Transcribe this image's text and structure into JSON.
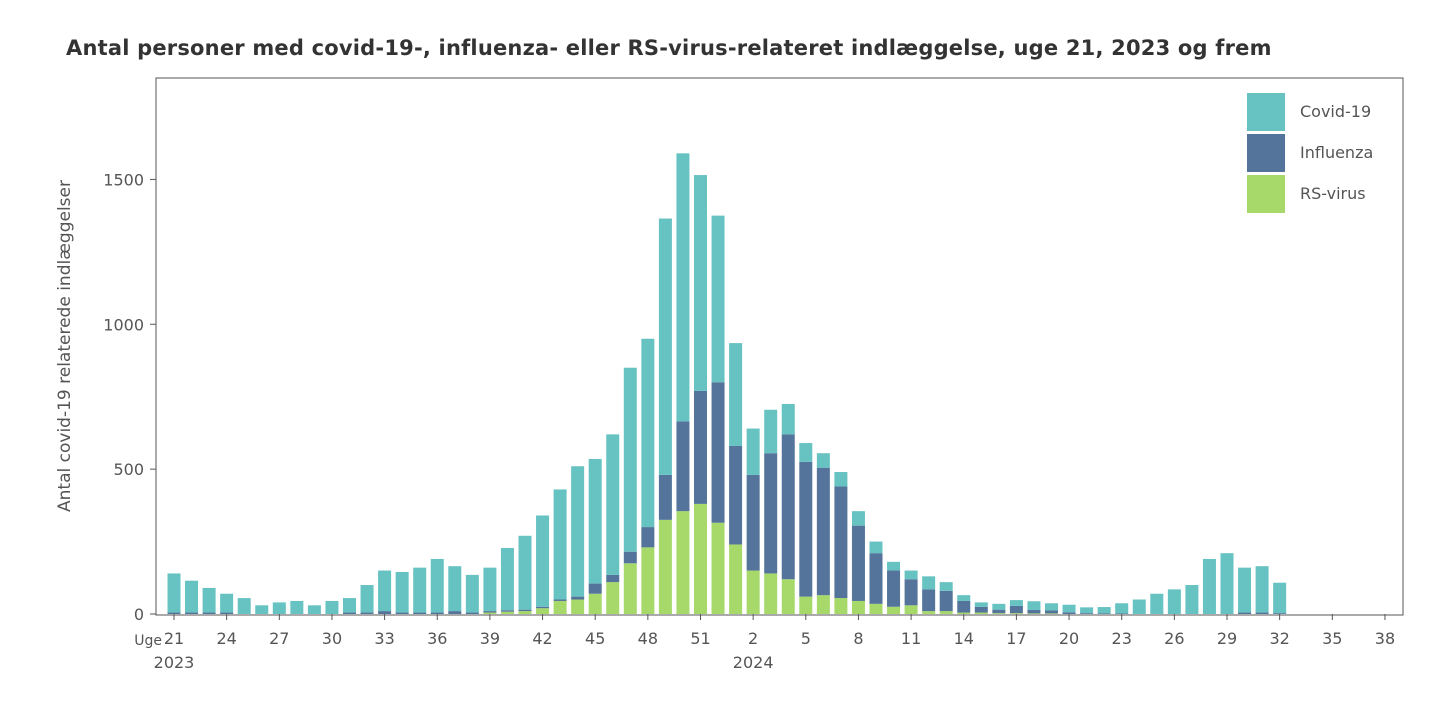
{
  "chart_data": {
    "type": "bar",
    "stacked": true,
    "title": "Antal personer med covid-19-, influenza- eller RS-virus-relateret indlæggelse, uge 21, 2023 og frem",
    "xlabel": "",
    "ylabel": "Antal covid-19 relaterede indlæggelser",
    "ylim": [
      0,
      1850
    ],
    "yticks": [
      0,
      500,
      1000,
      1500
    ],
    "week_axis_prefix": "Uge",
    "year_labels": [
      {
        "label": "2023",
        "week_index": 0
      },
      {
        "label": "2024",
        "week_index": 33
      }
    ],
    "tick_labels": [
      {
        "label": "21",
        "week_index": 0
      },
      {
        "label": "24",
        "week_index": 3
      },
      {
        "label": "27",
        "week_index": 6
      },
      {
        "label": "30",
        "week_index": 9
      },
      {
        "label": "33",
        "week_index": 12
      },
      {
        "label": "36",
        "week_index": 15
      },
      {
        "label": "39",
        "week_index": 18
      },
      {
        "label": "42",
        "week_index": 21
      },
      {
        "label": "45",
        "week_index": 24
      },
      {
        "label": "48",
        "week_index": 27
      },
      {
        "label": "51",
        "week_index": 30
      },
      {
        "label": "2",
        "week_index": 33
      },
      {
        "label": "5",
        "week_index": 36
      },
      {
        "label": "8",
        "week_index": 39
      },
      {
        "label": "11",
        "week_index": 42
      },
      {
        "label": "14",
        "week_index": 45
      },
      {
        "label": "17",
        "week_index": 48
      },
      {
        "label": "20",
        "week_index": 51
      },
      {
        "label": "23",
        "week_index": 54
      },
      {
        "label": "26",
        "week_index": 57
      },
      {
        "label": "29",
        "week_index": 60
      },
      {
        "label": "32",
        "week_index": 63
      },
      {
        "label": "35",
        "week_index": 66
      },
      {
        "label": "38",
        "week_index": 69
      }
    ],
    "categories": [
      "2023-W21",
      "2023-W22",
      "2023-W23",
      "2023-W24",
      "2023-W25",
      "2023-W26",
      "2023-W27",
      "2023-W28",
      "2023-W29",
      "2023-W30",
      "2023-W31",
      "2023-W32",
      "2023-W33",
      "2023-W34",
      "2023-W35",
      "2023-W36",
      "2023-W37",
      "2023-W38",
      "2023-W39",
      "2023-W40",
      "2023-W41",
      "2023-W42",
      "2023-W43",
      "2023-W44",
      "2023-W45",
      "2023-W46",
      "2023-W47",
      "2023-W48",
      "2023-W49",
      "2023-W50",
      "2023-W51",
      "2023-W52",
      "2024-W01",
      "2024-W02",
      "2024-W03",
      "2024-W04",
      "2024-W05",
      "2024-W06",
      "2024-W07",
      "2024-W08",
      "2024-W09",
      "2024-W10",
      "2024-W11",
      "2024-W12",
      "2024-W13",
      "2024-W14",
      "2024-W15",
      "2024-W16",
      "2024-W17",
      "2024-W18",
      "2024-W19",
      "2024-W20",
      "2024-W21",
      "2024-W22",
      "2024-W23",
      "2024-W24",
      "2024-W25",
      "2024-W26",
      "2024-W27",
      "2024-W28",
      "2024-W29",
      "2024-W30",
      "2024-W31",
      "2024-W32",
      "2024-W33",
      "2024-W34",
      "2024-W35",
      "2024-W36",
      "2024-W37",
      "2024-W38"
    ],
    "series": [
      {
        "name": "RS-virus",
        "color": "#a6d96a",
        "values": [
          0,
          0,
          0,
          0,
          0,
          0,
          0,
          0,
          0,
          0,
          0,
          0,
          0,
          0,
          0,
          0,
          0,
          0,
          5,
          8,
          10,
          20,
          45,
          50,
          70,
          110,
          175,
          230,
          325,
          355,
          380,
          315,
          240,
          150,
          140,
          120,
          60,
          65,
          55,
          45,
          35,
          25,
          30,
          10,
          10,
          5,
          5,
          3,
          3,
          2,
          2,
          0,
          0,
          0,
          0,
          0,
          0,
          0,
          0,
          0,
          0,
          0,
          0,
          0,
          0,
          0,
          0,
          0,
          0,
          0
        ]
      },
      {
        "name": "Influenza",
        "color": "#54749b",
        "values": [
          5,
          5,
          5,
          5,
          0,
          0,
          0,
          0,
          0,
          0,
          5,
          5,
          10,
          5,
          5,
          5,
          10,
          5,
          5,
          5,
          5,
          5,
          5,
          10,
          35,
          25,
          40,
          70,
          155,
          310,
          390,
          485,
          340,
          330,
          415,
          500,
          465,
          440,
          385,
          260,
          175,
          125,
          90,
          75,
          70,
          40,
          20,
          12,
          25,
          12,
          10,
          6,
          3,
          2,
          2,
          0,
          0,
          0,
          0,
          0,
          0,
          5,
          5,
          3,
          0,
          0,
          0,
          0,
          0,
          0
        ]
      },
      {
        "name": "Covid-19",
        "color": "#67c2c2",
        "values": [
          135,
          110,
          85,
          65,
          55,
          30,
          40,
          45,
          30,
          45,
          50,
          95,
          140,
          140,
          155,
          185,
          155,
          130,
          150,
          215,
          255,
          315,
          380,
          450,
          430,
          485,
          635,
          650,
          885,
          925,
          745,
          575,
          355,
          160,
          150,
          105,
          65,
          50,
          50,
          50,
          40,
          30,
          30,
          45,
          30,
          20,
          15,
          20,
          20,
          30,
          25,
          26,
          20,
          22,
          35,
          50,
          70,
          85,
          100,
          190,
          210,
          155,
          160,
          105,
          0,
          0,
          0,
          0,
          0,
          0
        ]
      }
    ],
    "legend": {
      "position": "top-right",
      "entries": [
        "Covid-19",
        "Influenza",
        "RS-virus"
      ]
    },
    "grid": false
  }
}
